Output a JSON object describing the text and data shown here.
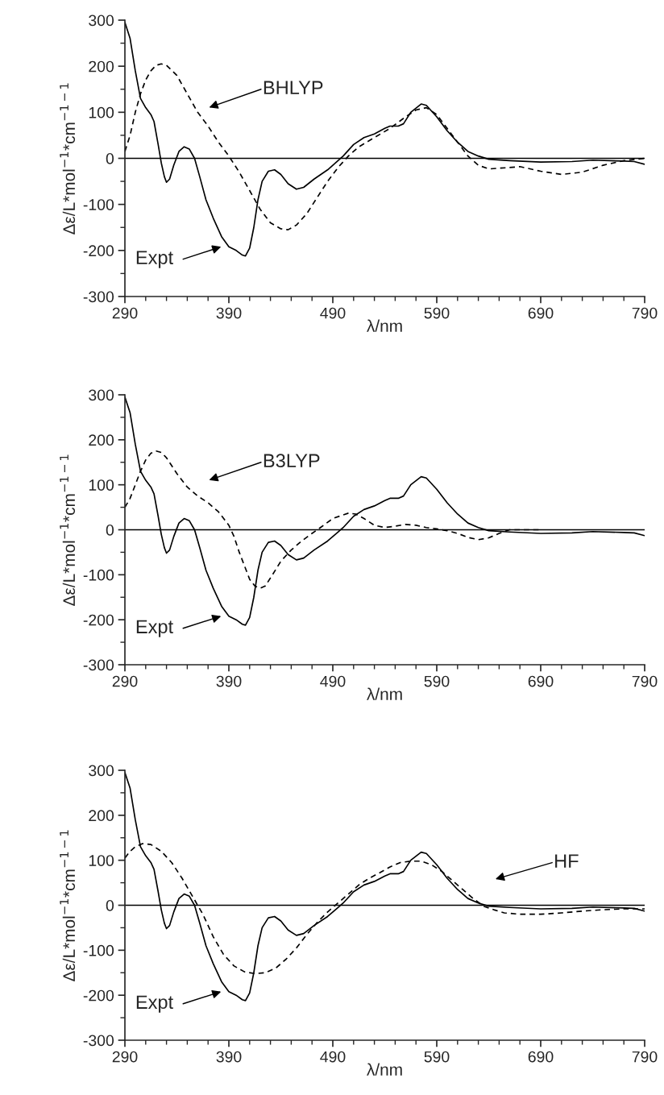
{
  "chart_data": [
    {
      "type": "line",
      "xlabel": "λ/nm",
      "ylabel": "Δε/L*mol$^{−1}$*cm$^{−1−1}$",
      "xlim": [
        290,
        790
      ],
      "ylim": [
        -300,
        300
      ],
      "xticks": [
        290,
        {
          "value": 310,
          "label": null
        },
        {
          "value": 330,
          "label": null
        },
        {
          "value": 350,
          "label": null
        },
        {
          "value": 370,
          "label": null
        },
        390,
        {
          "value": 410,
          "label": null
        },
        {
          "value": 430,
          "label": null
        },
        {
          "value": 450,
          "label": null
        },
        {
          "value": 470,
          "label": null
        },
        490,
        {
          "value": 510,
          "label": null
        },
        {
          "value": 530,
          "label": null
        },
        {
          "value": 550,
          "label": null
        },
        {
          "value": 570,
          "label": null
        },
        590,
        {
          "value": 610,
          "label": null
        },
        {
          "value": 630,
          "label": null
        },
        {
          "value": 650,
          "label": null
        },
        {
          "value": 670,
          "label": null
        },
        690,
        {
          "value": 710,
          "label": null
        },
        {
          "value": 730,
          "label": null
        },
        {
          "value": 750,
          "label": null
        },
        {
          "value": 770,
          "label": null
        },
        790
      ],
      "yticks": [
        -300,
        {
          "value": -250,
          "label": null
        },
        -200,
        {
          "value": -150,
          "label": null
        },
        -100,
        {
          "value": -50,
          "label": null
        },
        0,
        {
          "value": 50,
          "label": null
        },
        100,
        {
          "value": 150,
          "label": null
        },
        200,
        {
          "value": 250,
          "label": null
        },
        300
      ],
      "grid": false,
      "legend": false,
      "ref_lines": [
        {
          "axis": "y",
          "value": 0,
          "color": "#000000",
          "line_style": "solid"
        }
      ],
      "annotations": [
        "BHLYP",
        "Expt"
      ],
      "series": [
        {
          "color": "#000000",
          "line_style": "solid",
          "x": [
            290,
            295,
            300,
            305,
            310,
            315,
            318,
            322,
            325,
            328,
            330,
            333,
            337,
            342,
            347,
            352,
            357,
            362,
            368,
            375,
            383,
            390,
            397,
            403,
            406,
            410,
            414,
            418,
            422,
            428,
            434,
            440,
            447,
            455,
            462,
            472,
            485,
            495,
            500,
            510,
            520,
            530,
            540,
            545,
            553,
            558,
            565,
            575,
            580,
            590,
            600,
            610,
            620,
            630,
            640,
            660,
            690,
            720,
            740,
            770,
            780,
            790
          ],
          "values": [
            295,
            260,
            190,
            130,
            110,
            95,
            80,
            30,
            -10,
            -40,
            -52,
            -45,
            -15,
            15,
            25,
            20,
            0,
            -40,
            -90,
            -130,
            -170,
            -192,
            -200,
            -210,
            -212,
            -195,
            -150,
            -90,
            -50,
            -28,
            -25,
            -35,
            -55,
            -67,
            -63,
            -45,
            -25,
            -5,
            5,
            30,
            45,
            53,
            65,
            70,
            70,
            75,
            100,
            118,
            115,
            90,
            60,
            35,
            15,
            5,
            -2,
            -5,
            -8,
            -7,
            -4,
            -6,
            -7,
            -13
          ]
        },
        {
          "color": "#000000",
          "line_style": "dashed",
          "x": [
            290,
            295,
            300,
            305,
            310,
            315,
            320,
            325,
            330,
            340,
            350,
            360,
            370,
            380,
            390,
            400,
            410,
            420,
            430,
            440,
            447,
            455,
            465,
            475,
            485,
            495,
            505,
            515,
            530,
            545,
            560,
            570,
            580,
            590,
            600,
            610,
            620,
            630,
            640,
            660,
            670,
            690,
            710,
            730,
            750,
            770,
            790
          ],
          "values": [
            15,
            50,
            100,
            140,
            170,
            190,
            202,
            205,
            202,
            180,
            140,
            100,
            70,
            35,
            5,
            -30,
            -70,
            -110,
            -140,
            -153,
            -155,
            -145,
            -120,
            -85,
            -50,
            -20,
            5,
            25,
            45,
            65,
            90,
            105,
            110,
            95,
            65,
            35,
            5,
            -15,
            -23,
            -20,
            -18,
            -28,
            -35,
            -30,
            -15,
            -5,
            0
          ]
        }
      ]
    },
    {
      "type": "line",
      "xlabel": "λ/nm",
      "ylabel": "Δε/L*mol$^{−1}$*cm$^{−1−1}$",
      "xlim": [
        290,
        790
      ],
      "ylim": [
        -300,
        300
      ],
      "xticks": [
        290,
        {
          "value": 310,
          "label": null
        },
        {
          "value": 330,
          "label": null
        },
        {
          "value": 350,
          "label": null
        },
        {
          "value": 370,
          "label": null
        },
        390,
        {
          "value": 410,
          "label": null
        },
        {
          "value": 430,
          "label": null
        },
        {
          "value": 450,
          "label": null
        },
        {
          "value": 470,
          "label": null
        },
        490,
        {
          "value": 510,
          "label": null
        },
        {
          "value": 530,
          "label": null
        },
        {
          "value": 550,
          "label": null
        },
        {
          "value": 570,
          "label": null
        },
        590,
        {
          "value": 610,
          "label": null
        },
        {
          "value": 630,
          "label": null
        },
        {
          "value": 650,
          "label": null
        },
        {
          "value": 670,
          "label": null
        },
        690,
        {
          "value": 710,
          "label": null
        },
        {
          "value": 730,
          "label": null
        },
        {
          "value": 750,
          "label": null
        },
        {
          "value": 770,
          "label": null
        },
        790
      ],
      "yticks": [
        -300,
        {
          "value": -250,
          "label": null
        },
        -200,
        {
          "value": -150,
          "label": null
        },
        -100,
        {
          "value": -50,
          "label": null
        },
        0,
        {
          "value": 50,
          "label": null
        },
        100,
        {
          "value": 150,
          "label": null
        },
        200,
        {
          "value": 250,
          "label": null
        },
        300
      ],
      "grid": false,
      "legend": false,
      "ref_lines": [
        {
          "axis": "y",
          "value": 0,
          "color": "#000000",
          "line_style": "solid"
        }
      ],
      "annotations": [
        "B3LYP",
        "Expt"
      ],
      "series": [
        {
          "color": "#000000",
          "line_style": "solid",
          "x": [
            290,
            295,
            300,
            305,
            310,
            315,
            318,
            322,
            325,
            328,
            330,
            333,
            337,
            342,
            347,
            352,
            357,
            362,
            368,
            375,
            383,
            390,
            397,
            403,
            406,
            410,
            414,
            418,
            422,
            428,
            434,
            440,
            447,
            455,
            462,
            472,
            485,
            495,
            500,
            510,
            520,
            530,
            540,
            545,
            553,
            558,
            565,
            575,
            580,
            590,
            600,
            610,
            620,
            630,
            640,
            660,
            690,
            720,
            740,
            770,
            780,
            790
          ],
          "values": [
            295,
            260,
            190,
            130,
            110,
            95,
            80,
            30,
            -10,
            -40,
            -52,
            -45,
            -15,
            15,
            25,
            20,
            0,
            -40,
            -90,
            -130,
            -170,
            -192,
            -200,
            -210,
            -212,
            -195,
            -150,
            -90,
            -50,
            -28,
            -25,
            -35,
            -55,
            -67,
            -63,
            -45,
            -25,
            -5,
            5,
            30,
            45,
            53,
            65,
            70,
            70,
            75,
            100,
            118,
            115,
            90,
            60,
            35,
            15,
            5,
            -2,
            -5,
            -8,
            -7,
            -4,
            -6,
            -7,
            -13
          ]
        },
        {
          "color": "#000000",
          "line_style": "dashed",
          "x": [
            290,
            295,
            300,
            305,
            310,
            315,
            320,
            325,
            330,
            340,
            350,
            360,
            370,
            380,
            385,
            390,
            395,
            400,
            405,
            410,
            415,
            420,
            425,
            432,
            440,
            450,
            460,
            470,
            480,
            490,
            500,
            505,
            512,
            520,
            530,
            540,
            550,
            560,
            570,
            580,
            590,
            600,
            610,
            620,
            630,
            640,
            650,
            660,
            690
          ],
          "values": [
            50,
            70,
            100,
            130,
            155,
            170,
            175,
            172,
            160,
            125,
            95,
            75,
            60,
            40,
            25,
            10,
            -15,
            -50,
            -80,
            -110,
            -125,
            -130,
            -125,
            -100,
            -70,
            -45,
            -25,
            -8,
            8,
            25,
            33,
            37,
            35,
            25,
            10,
            5,
            8,
            12,
            10,
            5,
            2,
            -2,
            -8,
            -17,
            -22,
            -18,
            -8,
            0,
            0
          ]
        }
      ]
    },
    {
      "type": "line",
      "xlabel": "λ/nm",
      "ylabel": "Δε/L*mol$^{−1}$*cm$^{−1−1}$",
      "xlim": [
        290,
        790
      ],
      "ylim": [
        -300,
        300
      ],
      "xticks": [
        290,
        {
          "value": 310,
          "label": null
        },
        {
          "value": 330,
          "label": null
        },
        {
          "value": 350,
          "label": null
        },
        {
          "value": 370,
          "label": null
        },
        390,
        {
          "value": 410,
          "label": null
        },
        {
          "value": 430,
          "label": null
        },
        {
          "value": 450,
          "label": null
        },
        {
          "value": 470,
          "label": null
        },
        490,
        {
          "value": 510,
          "label": null
        },
        {
          "value": 530,
          "label": null
        },
        {
          "value": 550,
          "label": null
        },
        {
          "value": 570,
          "label": null
        },
        590,
        {
          "value": 610,
          "label": null
        },
        {
          "value": 630,
          "label": null
        },
        {
          "value": 650,
          "label": null
        },
        {
          "value": 670,
          "label": null
        },
        690,
        {
          "value": 710,
          "label": null
        },
        {
          "value": 730,
          "label": null
        },
        {
          "value": 750,
          "label": null
        },
        {
          "value": 770,
          "label": null
        },
        790
      ],
      "yticks": [
        -300,
        {
          "value": -250,
          "label": null
        },
        -200,
        {
          "value": -150,
          "label": null
        },
        -100,
        {
          "value": -50,
          "label": null
        },
        0,
        {
          "value": 50,
          "label": null
        },
        100,
        {
          "value": 150,
          "label": null
        },
        200,
        {
          "value": 250,
          "label": null
        },
        300
      ],
      "grid": false,
      "legend": false,
      "ref_lines": [
        {
          "axis": "y",
          "value": 0,
          "color": "#000000",
          "line_style": "solid"
        }
      ],
      "annotations": [
        "HF",
        "Expt"
      ],
      "series": [
        {
          "color": "#000000",
          "line_style": "solid",
          "x": [
            290,
            295,
            300,
            305,
            310,
            315,
            318,
            322,
            325,
            328,
            330,
            333,
            337,
            342,
            347,
            352,
            357,
            362,
            368,
            375,
            383,
            390,
            397,
            403,
            406,
            410,
            414,
            418,
            422,
            428,
            434,
            440,
            447,
            455,
            462,
            472,
            485,
            495,
            500,
            510,
            520,
            530,
            540,
            545,
            553,
            558,
            565,
            575,
            580,
            590,
            600,
            610,
            620,
            630,
            640,
            660,
            690,
            720,
            740,
            770,
            780,
            790
          ],
          "values": [
            295,
            260,
            190,
            130,
            110,
            95,
            80,
            30,
            -10,
            -40,
            -52,
            -45,
            -15,
            15,
            25,
            20,
            0,
            -40,
            -90,
            -130,
            -170,
            -192,
            -200,
            -210,
            -212,
            -195,
            -150,
            -90,
            -50,
            -28,
            -25,
            -35,
            -55,
            -67,
            -63,
            -45,
            -25,
            -5,
            5,
            30,
            45,
            53,
            65,
            70,
            70,
            75,
            100,
            118,
            115,
            90,
            60,
            35,
            15,
            5,
            -2,
            -5,
            -8,
            -7,
            -4,
            -6,
            -7,
            -13
          ]
        },
        {
          "color": "#000000",
          "line_style": "dashed",
          "x": [
            290,
            295,
            300,
            307,
            315,
            325,
            335,
            345,
            355,
            365,
            375,
            385,
            395,
            405,
            415,
            425,
            435,
            445,
            455,
            465,
            475,
            485,
            495,
            505,
            515,
            525,
            535,
            545,
            555,
            565,
            575,
            585,
            595,
            605,
            615,
            625,
            635,
            645,
            655,
            670,
            690,
            710,
            730,
            750,
            770,
            790
          ],
          "values": [
            105,
            120,
            130,
            137,
            135,
            120,
            95,
            60,
            20,
            -20,
            -70,
            -110,
            -135,
            -148,
            -152,
            -150,
            -140,
            -120,
            -95,
            -65,
            -38,
            -15,
            5,
            25,
            45,
            60,
            72,
            85,
            95,
            98,
            98,
            90,
            75,
            55,
            35,
            15,
            -2,
            -10,
            -17,
            -20,
            -20,
            -17,
            -13,
            -10,
            -8,
            -8
          ]
        }
      ]
    }
  ]
}
